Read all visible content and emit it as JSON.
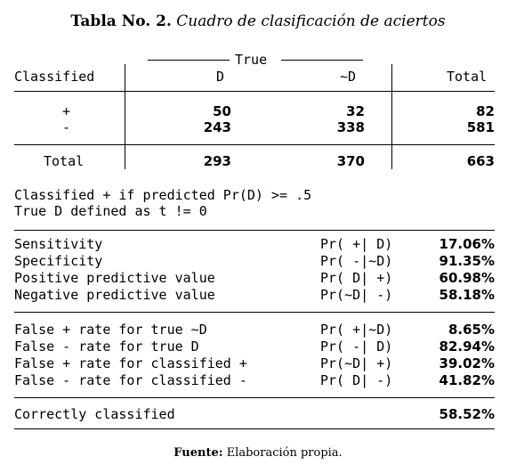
{
  "title": {
    "label": "Tabla No. 2.",
    "text": "Cuadro de clasificación de aciertos"
  },
  "table": {
    "true_header": "True",
    "classified_header": "Classified",
    "col_d": "D",
    "col_nd": "~D",
    "col_total": "Total",
    "rows": [
      {
        "label": "+",
        "d": "50",
        "nd": "32",
        "total": "82"
      },
      {
        "label": "-",
        "d": "243",
        "nd": "338",
        "total": "581"
      }
    ],
    "total_row": {
      "label": "Total",
      "d": "293",
      "nd": "370",
      "total": "663"
    }
  },
  "notes": [
    "Classified + if predicted Pr(D) >= .5",
    "True D defined as t != 0"
  ],
  "stats_group1": [
    {
      "label": "Sensitivity",
      "expr": "Pr( +| D)",
      "value": "17.06%"
    },
    {
      "label": "Specificity",
      "expr": "Pr( -|~D)",
      "value": "91.35%"
    },
    {
      "label": "Positive predictive value",
      "expr": "Pr( D| +)",
      "value": "60.98%"
    },
    {
      "label": "Negative predictive value",
      "expr": "Pr(~D| -)",
      "value": "58.18%"
    }
  ],
  "stats_group2": [
    {
      "label": "False + rate for true ~D",
      "expr": "Pr( +|~D)",
      "value": "8.65%"
    },
    {
      "label": "False - rate for true D",
      "expr": "Pr( -| D)",
      "value": "82.94%"
    },
    {
      "label": "False + rate for classified +",
      "expr": "Pr(~D| +)",
      "value": "39.02%"
    },
    {
      "label": "False - rate for classified -",
      "expr": "Pr( D| -)",
      "value": "41.82%"
    }
  ],
  "correct": {
    "label": "Correctly classified",
    "value": "58.52%"
  },
  "footer": {
    "label": "Fuente:",
    "text": "Elaboración propia."
  }
}
